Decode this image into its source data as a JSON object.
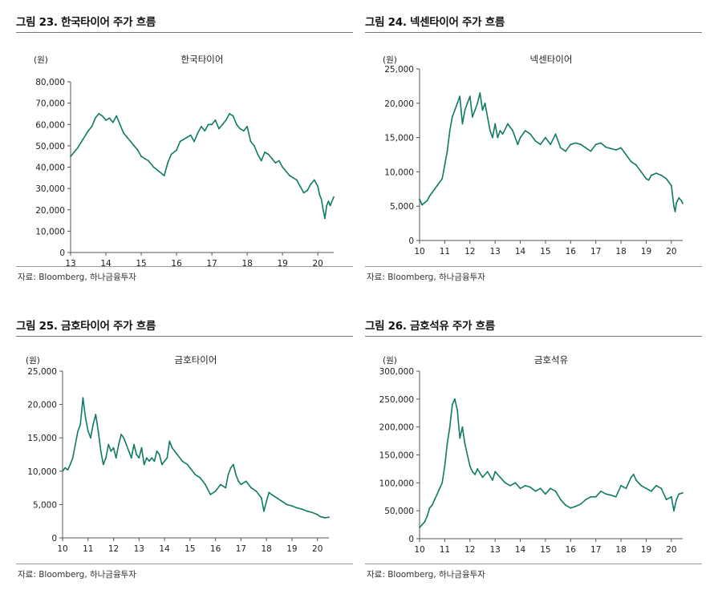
{
  "source_note": "자료: Bloomberg, 하나금융투자",
  "chart_data": [
    {
      "figure_title": "그림 23. 한국타이어 주가 흐름",
      "title": "한국타이어",
      "type": "line",
      "ylabel": "(원)",
      "ylim": [
        0,
        80000
      ],
      "yticks": [
        0,
        10000,
        20000,
        30000,
        40000,
        50000,
        60000,
        70000,
        80000
      ],
      "ytick_labels": [
        "0",
        "10,000",
        "20,000",
        "30,000",
        "40,000",
        "50,000",
        "60,000",
        "70,000",
        "80,000"
      ],
      "xlim": [
        13,
        20.45
      ],
      "xticks": [
        13,
        14,
        15,
        16,
        17,
        18,
        19,
        20
      ],
      "xtick_labels": [
        "13",
        "14",
        "15",
        "16",
        "17",
        "18",
        "19",
        "20"
      ],
      "series": [
        {
          "name": "한국타이어",
          "color": "#0f7a66",
          "x": [
            13.0,
            13.1,
            13.2,
            13.35,
            13.5,
            13.6,
            13.7,
            13.8,
            13.9,
            14.0,
            14.1,
            14.2,
            14.3,
            14.4,
            14.5,
            14.6,
            14.7,
            14.8,
            14.9,
            15.0,
            15.1,
            15.2,
            15.35,
            15.5,
            15.65,
            15.75,
            15.85,
            16.0,
            16.1,
            16.2,
            16.3,
            16.4,
            16.5,
            16.6,
            16.7,
            16.8,
            16.9,
            17.0,
            17.1,
            17.2,
            17.3,
            17.4,
            17.5,
            17.6,
            17.7,
            17.8,
            17.9,
            18.0,
            18.1,
            18.2,
            18.3,
            18.4,
            18.5,
            18.6,
            18.7,
            18.8,
            18.9,
            19.0,
            19.1,
            19.2,
            19.3,
            19.4,
            19.5,
            19.6,
            19.7,
            19.8,
            19.9,
            20.0,
            20.05,
            20.1,
            20.15,
            20.2,
            20.25,
            20.3,
            20.35,
            20.45
          ],
          "values": [
            45000,
            47000,
            49000,
            53000,
            57000,
            59000,
            63000,
            65000,
            64000,
            62000,
            63000,
            61000,
            64000,
            60000,
            56000,
            54000,
            52000,
            50000,
            48000,
            45000,
            44000,
            43000,
            40000,
            38000,
            36000,
            42000,
            46000,
            48000,
            52000,
            53000,
            54000,
            55000,
            52000,
            56000,
            59000,
            57000,
            60000,
            60000,
            62000,
            58000,
            60000,
            62000,
            65000,
            64000,
            60000,
            58000,
            57000,
            59000,
            52000,
            50000,
            46000,
            43000,
            47000,
            46000,
            44000,
            42000,
            43000,
            40000,
            38000,
            36000,
            35000,
            34000,
            31000,
            28000,
            29000,
            32000,
            34000,
            31000,
            27000,
            25000,
            20000,
            16000,
            22000,
            24000,
            22000,
            26000
          ]
        }
      ]
    },
    {
      "figure_title": "그림 24. 넥센타이어 주가 흐름",
      "title": "넥센타이어",
      "type": "line",
      "ylabel": "(원)",
      "ylim": [
        0,
        25000
      ],
      "yticks": [
        0,
        5000,
        10000,
        15000,
        20000,
        25000
      ],
      "ytick_labels": [
        "0",
        "5,000",
        "10,000",
        "15,000",
        "20,000",
        "25,000"
      ],
      "xlim": [
        10,
        20.45
      ],
      "xticks": [
        10,
        11,
        12,
        13,
        14,
        15,
        16,
        17,
        18,
        19,
        20
      ],
      "xtick_labels": [
        "10",
        "11",
        "12",
        "13",
        "14",
        "15",
        "16",
        "17",
        "18",
        "19",
        "20"
      ],
      "series": [
        {
          "name": "넥센타이어",
          "color": "#0f7a66",
          "x": [
            10.0,
            10.1,
            10.2,
            10.3,
            10.4,
            10.5,
            10.6,
            10.7,
            10.8,
            10.9,
            11.0,
            11.1,
            11.2,
            11.3,
            11.4,
            11.5,
            11.6,
            11.7,
            11.8,
            11.9,
            12.0,
            12.1,
            12.2,
            12.3,
            12.4,
            12.5,
            12.6,
            12.7,
            12.8,
            12.9,
            13.0,
            13.1,
            13.2,
            13.3,
            13.5,
            13.7,
            13.9,
            14.0,
            14.2,
            14.4,
            14.6,
            14.8,
            15.0,
            15.2,
            15.4,
            15.6,
            15.8,
            16.0,
            16.2,
            16.4,
            16.6,
            16.8,
            17.0,
            17.2,
            17.4,
            17.6,
            17.8,
            18.0,
            18.2,
            18.4,
            18.6,
            18.8,
            19.0,
            19.1,
            19.2,
            19.4,
            19.6,
            19.8,
            20.0,
            20.05,
            20.1,
            20.15,
            20.2,
            20.3,
            20.4,
            20.45
          ],
          "values": [
            6000,
            5200,
            5500,
            5800,
            6500,
            7000,
            7500,
            8000,
            8500,
            9000,
            11000,
            13000,
            16000,
            18000,
            19000,
            20000,
            21000,
            17000,
            19000,
            20000,
            21000,
            18000,
            19000,
            20000,
            21500,
            19000,
            20000,
            18000,
            16000,
            15000,
            17000,
            15000,
            16000,
            15500,
            17000,
            16000,
            14000,
            15000,
            16000,
            15500,
            14500,
            14000,
            15000,
            14000,
            15500,
            13500,
            13000,
            14000,
            14200,
            14000,
            13500,
            13000,
            14000,
            14200,
            13600,
            13400,
            13200,
            13500,
            12500,
            11500,
            11000,
            10000,
            9000,
            8800,
            9500,
            9800,
            9500,
            9000,
            8000,
            6500,
            5000,
            4200,
            5500,
            6200,
            5800,
            5400
          ]
        }
      ]
    },
    {
      "figure_title": "그림 25. 금호타이어 주가 흐름",
      "title": "금호타이어",
      "type": "line",
      "ylabel": "(원)",
      "ylim": [
        0,
        25000
      ],
      "yticks": [
        0,
        5000,
        10000,
        15000,
        20000,
        25000
      ],
      "ytick_labels": [
        "0",
        "5,000",
        "10,000",
        "15,000",
        "20,000",
        "25,000"
      ],
      "xlim": [
        10,
        20.45
      ],
      "xticks": [
        10,
        11,
        12,
        13,
        14,
        15,
        16,
        17,
        18,
        19,
        20
      ],
      "xtick_labels": [
        "10",
        "11",
        "12",
        "13",
        "14",
        "15",
        "16",
        "17",
        "18",
        "19",
        "20"
      ],
      "series": [
        {
          "name": "금호타이어",
          "color": "#0f7a66",
          "x": [
            10.0,
            10.1,
            10.2,
            10.3,
            10.4,
            10.5,
            10.6,
            10.7,
            10.8,
            10.9,
            11.0,
            11.1,
            11.2,
            11.3,
            11.4,
            11.5,
            11.6,
            11.7,
            11.8,
            11.9,
            12.0,
            12.1,
            12.2,
            12.3,
            12.4,
            12.5,
            12.6,
            12.7,
            12.8,
            12.9,
            13.0,
            13.1,
            13.2,
            13.3,
            13.4,
            13.5,
            13.6,
            13.7,
            13.8,
            13.9,
            14.0,
            14.1,
            14.2,
            14.3,
            14.5,
            14.7,
            14.9,
            15.0,
            15.2,
            15.4,
            15.6,
            15.8,
            16.0,
            16.2,
            16.4,
            16.5,
            16.6,
            16.7,
            16.8,
            16.9,
            17.0,
            17.2,
            17.4,
            17.6,
            17.8,
            17.9,
            18.0,
            18.1,
            18.2,
            18.4,
            18.6,
            18.8,
            19.0,
            19.2,
            19.4,
            19.6,
            19.8,
            20.0,
            20.1,
            20.2,
            20.3,
            20.45
          ],
          "values": [
            10000,
            10500,
            10200,
            11000,
            12000,
            14000,
            16000,
            17000,
            21000,
            18000,
            16000,
            15000,
            17000,
            18500,
            16000,
            13000,
            11000,
            12000,
            14000,
            13000,
            13500,
            12000,
            14000,
            15500,
            15000,
            14000,
            13000,
            12000,
            14000,
            12500,
            12000,
            13500,
            11000,
            12000,
            11500,
            12000,
            11500,
            13000,
            12500,
            11000,
            11500,
            12000,
            14500,
            13500,
            12500,
            11500,
            11000,
            10500,
            9500,
            9000,
            8000,
            6500,
            7000,
            8000,
            7500,
            9500,
            10500,
            11000,
            9500,
            8500,
            8000,
            8500,
            7500,
            7000,
            6000,
            4000,
            5500,
            6800,
            6500,
            6000,
            5500,
            5000,
            4800,
            4500,
            4300,
            4000,
            3800,
            3500,
            3200,
            3100,
            3000,
            3100
          ]
        }
      ]
    },
    {
      "figure_title": "그림 26. 금호석유 주가 흐름",
      "title": "금호석유",
      "type": "line",
      "ylabel": "(원)",
      "ylim": [
        0,
        300000
      ],
      "yticks": [
        0,
        50000,
        100000,
        150000,
        200000,
        250000,
        300000
      ],
      "ytick_labels": [
        "0",
        "50,000",
        "100,000",
        "150,000",
        "200,000",
        "250,000",
        "300,000"
      ],
      "xlim": [
        10,
        20.45
      ],
      "xticks": [
        10,
        11,
        12,
        13,
        14,
        15,
        16,
        17,
        18,
        19,
        20
      ],
      "xtick_labels": [
        "10",
        "11",
        "12",
        "13",
        "14",
        "15",
        "16",
        "17",
        "18",
        "19",
        "20"
      ],
      "series": [
        {
          "name": "금호석유",
          "color": "#0f7a66",
          "x": [
            10.0,
            10.1,
            10.2,
            10.3,
            10.4,
            10.5,
            10.6,
            10.7,
            10.8,
            10.9,
            11.0,
            11.1,
            11.2,
            11.3,
            11.4,
            11.5,
            11.6,
            11.7,
            11.8,
            11.9,
            12.0,
            12.1,
            12.2,
            12.3,
            12.5,
            12.7,
            12.9,
            13.0,
            13.2,
            13.4,
            13.6,
            13.8,
            14.0,
            14.2,
            14.4,
            14.6,
            14.8,
            15.0,
            15.2,
            15.4,
            15.6,
            15.8,
            16.0,
            16.2,
            16.4,
            16.6,
            16.8,
            17.0,
            17.2,
            17.4,
            17.6,
            17.8,
            18.0,
            18.2,
            18.4,
            18.5,
            18.6,
            18.8,
            19.0,
            19.2,
            19.4,
            19.6,
            19.8,
            20.0,
            20.1,
            20.2,
            20.3,
            20.45
          ],
          "values": [
            20000,
            25000,
            30000,
            40000,
            55000,
            60000,
            70000,
            80000,
            90000,
            100000,
            130000,
            170000,
            200000,
            240000,
            250000,
            230000,
            180000,
            200000,
            170000,
            150000,
            130000,
            120000,
            115000,
            125000,
            110000,
            120000,
            105000,
            120000,
            110000,
            100000,
            95000,
            100000,
            90000,
            95000,
            92000,
            85000,
            90000,
            80000,
            90000,
            85000,
            70000,
            60000,
            55000,
            58000,
            62000,
            70000,
            75000,
            75000,
            85000,
            80000,
            78000,
            75000,
            95000,
            90000,
            110000,
            115000,
            105000,
            95000,
            90000,
            85000,
            95000,
            90000,
            70000,
            75000,
            50000,
            70000,
            80000,
            82000
          ]
        }
      ]
    }
  ]
}
